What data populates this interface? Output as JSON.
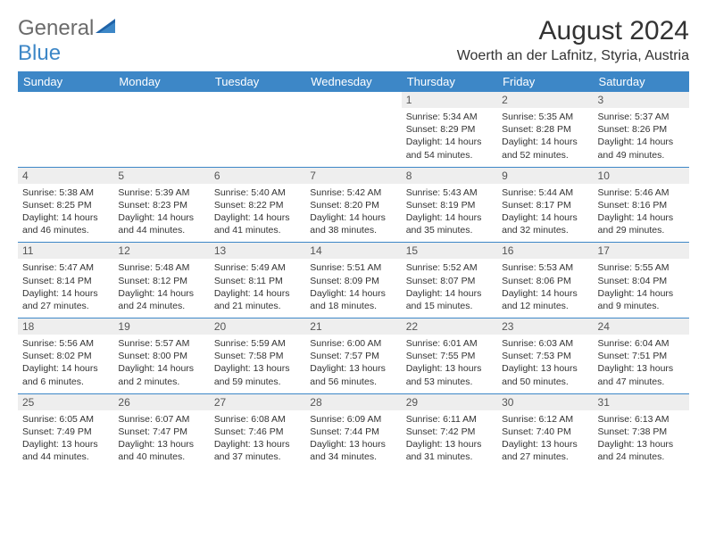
{
  "logo": {
    "part1": "General",
    "part2": "Blue"
  },
  "title": "August 2024",
  "location": "Woerth an der Lafnitz, Styria, Austria",
  "colors": {
    "brand_blue": "#3d87c7",
    "header_text": "#ffffff",
    "daynum_bg": "#eeeeee",
    "body_text": "#333333",
    "logo_gray": "#6b6b6b"
  },
  "day_headers": [
    "Sunday",
    "Monday",
    "Tuesday",
    "Wednesday",
    "Thursday",
    "Friday",
    "Saturday"
  ],
  "weeks": [
    [
      null,
      null,
      null,
      null,
      {
        "n": "1",
        "sr": "Sunrise: 5:34 AM",
        "ss": "Sunset: 8:29 PM",
        "d1": "Daylight: 14 hours",
        "d2": "and 54 minutes."
      },
      {
        "n": "2",
        "sr": "Sunrise: 5:35 AM",
        "ss": "Sunset: 8:28 PM",
        "d1": "Daylight: 14 hours",
        "d2": "and 52 minutes."
      },
      {
        "n": "3",
        "sr": "Sunrise: 5:37 AM",
        "ss": "Sunset: 8:26 PM",
        "d1": "Daylight: 14 hours",
        "d2": "and 49 minutes."
      }
    ],
    [
      {
        "n": "4",
        "sr": "Sunrise: 5:38 AM",
        "ss": "Sunset: 8:25 PM",
        "d1": "Daylight: 14 hours",
        "d2": "and 46 minutes."
      },
      {
        "n": "5",
        "sr": "Sunrise: 5:39 AM",
        "ss": "Sunset: 8:23 PM",
        "d1": "Daylight: 14 hours",
        "d2": "and 44 minutes."
      },
      {
        "n": "6",
        "sr": "Sunrise: 5:40 AM",
        "ss": "Sunset: 8:22 PM",
        "d1": "Daylight: 14 hours",
        "d2": "and 41 minutes."
      },
      {
        "n": "7",
        "sr": "Sunrise: 5:42 AM",
        "ss": "Sunset: 8:20 PM",
        "d1": "Daylight: 14 hours",
        "d2": "and 38 minutes."
      },
      {
        "n": "8",
        "sr": "Sunrise: 5:43 AM",
        "ss": "Sunset: 8:19 PM",
        "d1": "Daylight: 14 hours",
        "d2": "and 35 minutes."
      },
      {
        "n": "9",
        "sr": "Sunrise: 5:44 AM",
        "ss": "Sunset: 8:17 PM",
        "d1": "Daylight: 14 hours",
        "d2": "and 32 minutes."
      },
      {
        "n": "10",
        "sr": "Sunrise: 5:46 AM",
        "ss": "Sunset: 8:16 PM",
        "d1": "Daylight: 14 hours",
        "d2": "and 29 minutes."
      }
    ],
    [
      {
        "n": "11",
        "sr": "Sunrise: 5:47 AM",
        "ss": "Sunset: 8:14 PM",
        "d1": "Daylight: 14 hours",
        "d2": "and 27 minutes."
      },
      {
        "n": "12",
        "sr": "Sunrise: 5:48 AM",
        "ss": "Sunset: 8:12 PM",
        "d1": "Daylight: 14 hours",
        "d2": "and 24 minutes."
      },
      {
        "n": "13",
        "sr": "Sunrise: 5:49 AM",
        "ss": "Sunset: 8:11 PM",
        "d1": "Daylight: 14 hours",
        "d2": "and 21 minutes."
      },
      {
        "n": "14",
        "sr": "Sunrise: 5:51 AM",
        "ss": "Sunset: 8:09 PM",
        "d1": "Daylight: 14 hours",
        "d2": "and 18 minutes."
      },
      {
        "n": "15",
        "sr": "Sunrise: 5:52 AM",
        "ss": "Sunset: 8:07 PM",
        "d1": "Daylight: 14 hours",
        "d2": "and 15 minutes."
      },
      {
        "n": "16",
        "sr": "Sunrise: 5:53 AM",
        "ss": "Sunset: 8:06 PM",
        "d1": "Daylight: 14 hours",
        "d2": "and 12 minutes."
      },
      {
        "n": "17",
        "sr": "Sunrise: 5:55 AM",
        "ss": "Sunset: 8:04 PM",
        "d1": "Daylight: 14 hours",
        "d2": "and 9 minutes."
      }
    ],
    [
      {
        "n": "18",
        "sr": "Sunrise: 5:56 AM",
        "ss": "Sunset: 8:02 PM",
        "d1": "Daylight: 14 hours",
        "d2": "and 6 minutes."
      },
      {
        "n": "19",
        "sr": "Sunrise: 5:57 AM",
        "ss": "Sunset: 8:00 PM",
        "d1": "Daylight: 14 hours",
        "d2": "and 2 minutes."
      },
      {
        "n": "20",
        "sr": "Sunrise: 5:59 AM",
        "ss": "Sunset: 7:58 PM",
        "d1": "Daylight: 13 hours",
        "d2": "and 59 minutes."
      },
      {
        "n": "21",
        "sr": "Sunrise: 6:00 AM",
        "ss": "Sunset: 7:57 PM",
        "d1": "Daylight: 13 hours",
        "d2": "and 56 minutes."
      },
      {
        "n": "22",
        "sr": "Sunrise: 6:01 AM",
        "ss": "Sunset: 7:55 PM",
        "d1": "Daylight: 13 hours",
        "d2": "and 53 minutes."
      },
      {
        "n": "23",
        "sr": "Sunrise: 6:03 AM",
        "ss": "Sunset: 7:53 PM",
        "d1": "Daylight: 13 hours",
        "d2": "and 50 minutes."
      },
      {
        "n": "24",
        "sr": "Sunrise: 6:04 AM",
        "ss": "Sunset: 7:51 PM",
        "d1": "Daylight: 13 hours",
        "d2": "and 47 minutes."
      }
    ],
    [
      {
        "n": "25",
        "sr": "Sunrise: 6:05 AM",
        "ss": "Sunset: 7:49 PM",
        "d1": "Daylight: 13 hours",
        "d2": "and 44 minutes."
      },
      {
        "n": "26",
        "sr": "Sunrise: 6:07 AM",
        "ss": "Sunset: 7:47 PM",
        "d1": "Daylight: 13 hours",
        "d2": "and 40 minutes."
      },
      {
        "n": "27",
        "sr": "Sunrise: 6:08 AM",
        "ss": "Sunset: 7:46 PM",
        "d1": "Daylight: 13 hours",
        "d2": "and 37 minutes."
      },
      {
        "n": "28",
        "sr": "Sunrise: 6:09 AM",
        "ss": "Sunset: 7:44 PM",
        "d1": "Daylight: 13 hours",
        "d2": "and 34 minutes."
      },
      {
        "n": "29",
        "sr": "Sunrise: 6:11 AM",
        "ss": "Sunset: 7:42 PM",
        "d1": "Daylight: 13 hours",
        "d2": "and 31 minutes."
      },
      {
        "n": "30",
        "sr": "Sunrise: 6:12 AM",
        "ss": "Sunset: 7:40 PM",
        "d1": "Daylight: 13 hours",
        "d2": "and 27 minutes."
      },
      {
        "n": "31",
        "sr": "Sunrise: 6:13 AM",
        "ss": "Sunset: 7:38 PM",
        "d1": "Daylight: 13 hours",
        "d2": "and 24 minutes."
      }
    ]
  ]
}
